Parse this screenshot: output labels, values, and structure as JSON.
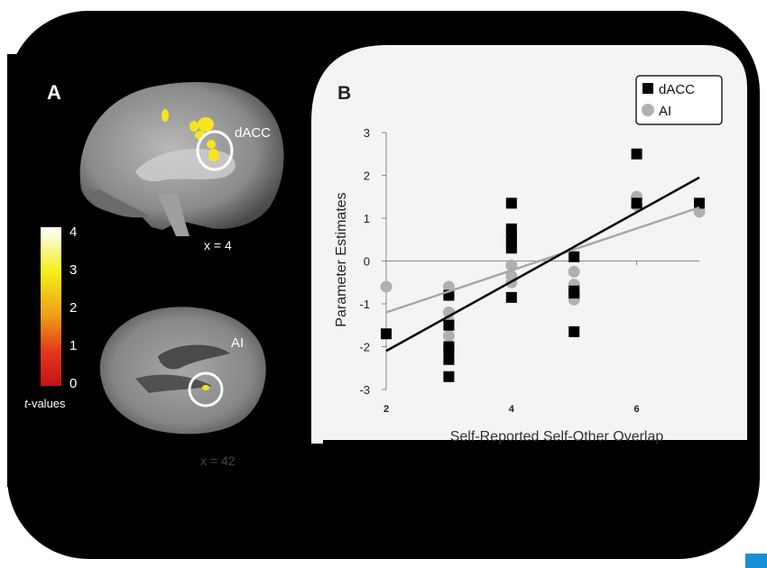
{
  "panel_a": {
    "letter": "A",
    "sagittal_top": {
      "roi_label": "dACC",
      "slice_label": "x = 4"
    },
    "sagittal_bottom": {
      "roi_label": "AI",
      "slice_label": "x = 42"
    },
    "colorbar": {
      "ticks": [
        "4",
        "3",
        "2",
        "1",
        "0"
      ],
      "title_italic": "t",
      "title_rest": "-values",
      "colors": [
        "#ffffff",
        "#f3ef1a",
        "#f0a018",
        "#e23a1a",
        "#c4121b"
      ]
    }
  },
  "panel_b": {
    "letter": "B",
    "legend": [
      "dACC",
      "AI"
    ]
  },
  "chart_data": {
    "type": "scatter",
    "title": "",
    "xlabel": "Self-Reported Self-Other Overlap",
    "ylabel": "Parameter Estimates",
    "xlim": [
      2,
      7
    ],
    "ylim": [
      -3,
      3
    ],
    "x_ticks": [
      "2",
      "4",
      "6"
    ],
    "y_ticks": [
      "3",
      "2",
      "1",
      "0",
      "-1",
      "-2",
      "-3"
    ],
    "grid": false,
    "legend_position": "top-right",
    "series": [
      {
        "name": "dACC",
        "color": "#000000",
        "marker": "square",
        "points": [
          [
            2,
            -1.7
          ],
          [
            3,
            -0.8
          ],
          [
            3,
            -1.5
          ],
          [
            3,
            -2.0
          ],
          [
            3,
            -2.1
          ],
          [
            3,
            -2.3
          ],
          [
            3,
            -2.7
          ],
          [
            4,
            1.35
          ],
          [
            4,
            0.75
          ],
          [
            4,
            0.6
          ],
          [
            4,
            0.45
          ],
          [
            4,
            0.3
          ],
          [
            4,
            -0.85
          ],
          [
            5,
            0.1
          ],
          [
            5,
            -0.7
          ],
          [
            5,
            -0.75
          ],
          [
            5,
            -1.65
          ],
          [
            6,
            2.5
          ],
          [
            6,
            1.35
          ],
          [
            7,
            1.35
          ]
        ],
        "fit": [
          [
            2,
            -2.1
          ],
          [
            7,
            1.95
          ]
        ]
      },
      {
        "name": "AI",
        "color": "#b0b0b0",
        "marker": "circle",
        "points": [
          [
            2,
            -0.6
          ],
          [
            3,
            -0.6
          ],
          [
            3,
            -0.8
          ],
          [
            3,
            -1.2
          ],
          [
            3,
            -1.4
          ],
          [
            3,
            -1.75
          ],
          [
            4,
            -0.1
          ],
          [
            4,
            -0.35
          ],
          [
            4,
            -0.5
          ],
          [
            5,
            -0.25
          ],
          [
            5,
            -0.55
          ],
          [
            5,
            -0.8
          ],
          [
            5,
            -0.9
          ],
          [
            6,
            1.5
          ],
          [
            6,
            1.3
          ],
          [
            7,
            1.15
          ]
        ],
        "fit": [
          [
            2,
            -1.2
          ],
          [
            7,
            1.25
          ]
        ]
      }
    ]
  }
}
